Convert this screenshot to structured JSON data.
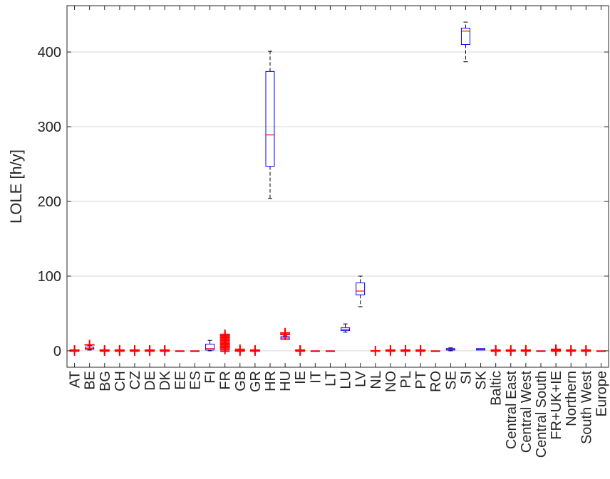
{
  "chart_data": {
    "type": "box",
    "title": "",
    "xlabel": "",
    "ylabel": "LOLE [h/y]",
    "ylim": [
      -22,
      462
    ],
    "yticks": [
      0,
      100,
      200,
      300,
      400
    ],
    "grid": "horizontal",
    "colors": {
      "box": "#0000ff",
      "median": "#ff0000",
      "whisker": "#000000",
      "outlier": "#ff0000",
      "grid": "#d9d9d9",
      "axis": "#262626"
    },
    "categories": [
      "AT",
      "BE",
      "BG",
      "CH",
      "CZ",
      "DE",
      "DK",
      "EE",
      "ES",
      "FI",
      "FR",
      "GB",
      "GR",
      "HR",
      "HU",
      "IE",
      "IT",
      "LT",
      "LU",
      "LV",
      "NL",
      "NO",
      "PL",
      "PT",
      "RO",
      "SE",
      "SI",
      "SK",
      "Baltic",
      "Central East",
      "Central West",
      "Central South",
      "FR+UK+IE",
      "Northern",
      "South West",
      "Europe"
    ],
    "boxes": [
      {
        "label": "AT",
        "q1": 0,
        "median": 0,
        "q3": 0,
        "whisker_low": 0,
        "whisker_high": 0,
        "outliers": [
          0,
          1
        ]
      },
      {
        "label": "BE",
        "q1": 2,
        "median": 3,
        "q3": 5,
        "whisker_low": 1,
        "whisker_high": 7,
        "outliers": [
          8
        ]
      },
      {
        "label": "BG",
        "q1": 0,
        "median": 0,
        "q3": 0,
        "whisker_low": 0,
        "whisker_high": 0,
        "outliers": [
          0,
          1
        ]
      },
      {
        "label": "CH",
        "q1": 0,
        "median": 0,
        "q3": 0,
        "whisker_low": 0,
        "whisker_high": 0,
        "outliers": [
          0,
          1
        ]
      },
      {
        "label": "CZ",
        "q1": 0,
        "median": 0,
        "q3": 0,
        "whisker_low": 0,
        "whisker_high": 0,
        "outliers": [
          0,
          1
        ]
      },
      {
        "label": "DE",
        "q1": 0,
        "median": 0,
        "q3": 0,
        "whisker_low": 0,
        "whisker_high": 0,
        "outliers": [
          0,
          1
        ]
      },
      {
        "label": "DK",
        "q1": 0,
        "median": 0,
        "q3": 0,
        "whisker_low": 0,
        "whisker_high": 0,
        "outliers": [
          0,
          1
        ]
      },
      {
        "label": "EE",
        "q1": 0,
        "median": 0,
        "q3": 0,
        "whisker_low": 0,
        "whisker_high": 0,
        "outliers": []
      },
      {
        "label": "ES",
        "q1": 0,
        "median": 0,
        "q3": 0,
        "whisker_low": 0,
        "whisker_high": 0,
        "outliers": []
      },
      {
        "label": "FI",
        "q1": 1,
        "median": 3,
        "q3": 9,
        "whisker_low": 0,
        "whisker_high": 14,
        "outliers": []
      },
      {
        "label": "FR",
        "q1": 0,
        "median": 0,
        "q3": 0,
        "whisker_low": 0,
        "whisker_high": 0,
        "outliers": [
          2,
          4,
          6,
          8,
          10,
          12,
          14,
          16,
          18,
          20,
          22
        ]
      },
      {
        "label": "GB",
        "q1": 0,
        "median": 0,
        "q3": 0,
        "whisker_low": 0,
        "whisker_high": 0,
        "outliers": [
          0,
          2
        ]
      },
      {
        "label": "GR",
        "q1": 0,
        "median": 0,
        "q3": 0,
        "whisker_low": 0,
        "whisker_high": 0,
        "outliers": [
          0,
          1
        ]
      },
      {
        "label": "HR",
        "q1": 247,
        "median": 289,
        "q3": 374,
        "whisker_low": 204,
        "whisker_high": 401,
        "outliers": []
      },
      {
        "label": "HU",
        "q1": 15,
        "median": 17,
        "q3": 19,
        "whisker_low": 15,
        "whisker_high": 20,
        "outliers": [
          22,
          24
        ]
      },
      {
        "label": "IE",
        "q1": 0,
        "median": 0,
        "q3": 0,
        "whisker_low": 0,
        "whisker_high": 0,
        "outliers": [
          0,
          1
        ]
      },
      {
        "label": "IT",
        "q1": 0,
        "median": 0,
        "q3": 0,
        "whisker_low": 0,
        "whisker_high": 0,
        "outliers": []
      },
      {
        "label": "LT",
        "q1": 0,
        "median": 0,
        "q3": 0,
        "whisker_low": 0,
        "whisker_high": 0,
        "outliers": []
      },
      {
        "label": "LU",
        "q1": 27,
        "median": 29,
        "q3": 31,
        "whisker_low": 25,
        "whisker_high": 36,
        "outliers": []
      },
      {
        "label": "LV",
        "q1": 75,
        "median": 80,
        "q3": 91,
        "whisker_low": 59,
        "whisker_high": 100,
        "outliers": []
      },
      {
        "label": "NL",
        "q1": 0,
        "median": 0,
        "q3": 0,
        "whisker_low": 0,
        "whisker_high": 0,
        "outliers": [
          0
        ]
      },
      {
        "label": "NO",
        "q1": 0,
        "median": 0,
        "q3": 0,
        "whisker_low": 0,
        "whisker_high": 0,
        "outliers": [
          0,
          1
        ]
      },
      {
        "label": "PL",
        "q1": 0,
        "median": 0,
        "q3": 0,
        "whisker_low": 0,
        "whisker_high": 0,
        "outliers": [
          0,
          1
        ]
      },
      {
        "label": "PT",
        "q1": 0,
        "median": 0,
        "q3": 0,
        "whisker_low": 0,
        "whisker_high": 0,
        "outliers": [
          0,
          1
        ]
      },
      {
        "label": "RO",
        "q1": 0,
        "median": 0,
        "q3": 0,
        "whisker_low": 0,
        "whisker_high": 0,
        "outliers": []
      },
      {
        "label": "SE",
        "q1": 1,
        "median": 2,
        "q3": 3,
        "whisker_low": 0,
        "whisker_high": 4,
        "outliers": []
      },
      {
        "label": "SI",
        "q1": 410,
        "median": 428,
        "q3": 432,
        "whisker_low": 387,
        "whisker_high": 440,
        "outliers": []
      },
      {
        "label": "SK",
        "q1": 1,
        "median": 2,
        "q3": 3,
        "whisker_low": 1,
        "whisker_high": 3,
        "outliers": []
      },
      {
        "label": "Baltic",
        "q1": 0,
        "median": 0,
        "q3": 0,
        "whisker_low": 0,
        "whisker_high": 0,
        "outliers": [
          0,
          1
        ]
      },
      {
        "label": "Central East",
        "q1": 0,
        "median": 0,
        "q3": 0,
        "whisker_low": 0,
        "whisker_high": 0,
        "outliers": [
          0,
          1
        ]
      },
      {
        "label": "Central West",
        "q1": 0,
        "median": 0,
        "q3": 0,
        "whisker_low": 0,
        "whisker_high": 0,
        "outliers": [
          0,
          1
        ]
      },
      {
        "label": "Central South",
        "q1": 0,
        "median": 0,
        "q3": 0,
        "whisker_low": 0,
        "whisker_high": 0,
        "outliers": []
      },
      {
        "label": "FR+UK+IE",
        "q1": 0,
        "median": 0,
        "q3": 0,
        "whisker_low": 0,
        "whisker_high": 0,
        "outliers": [
          0,
          1,
          2
        ]
      },
      {
        "label": "Northern",
        "q1": 0,
        "median": 0,
        "q3": 0,
        "whisker_low": 0,
        "whisker_high": 0,
        "outliers": [
          0,
          1
        ]
      },
      {
        "label": "South West",
        "q1": 0,
        "median": 0,
        "q3": 0,
        "whisker_low": 0,
        "whisker_high": 0,
        "outliers": [
          0,
          1
        ]
      },
      {
        "label": "Europe",
        "q1": 0,
        "median": 0,
        "q3": 0,
        "whisker_low": 0,
        "whisker_high": 0,
        "outliers": []
      }
    ]
  }
}
